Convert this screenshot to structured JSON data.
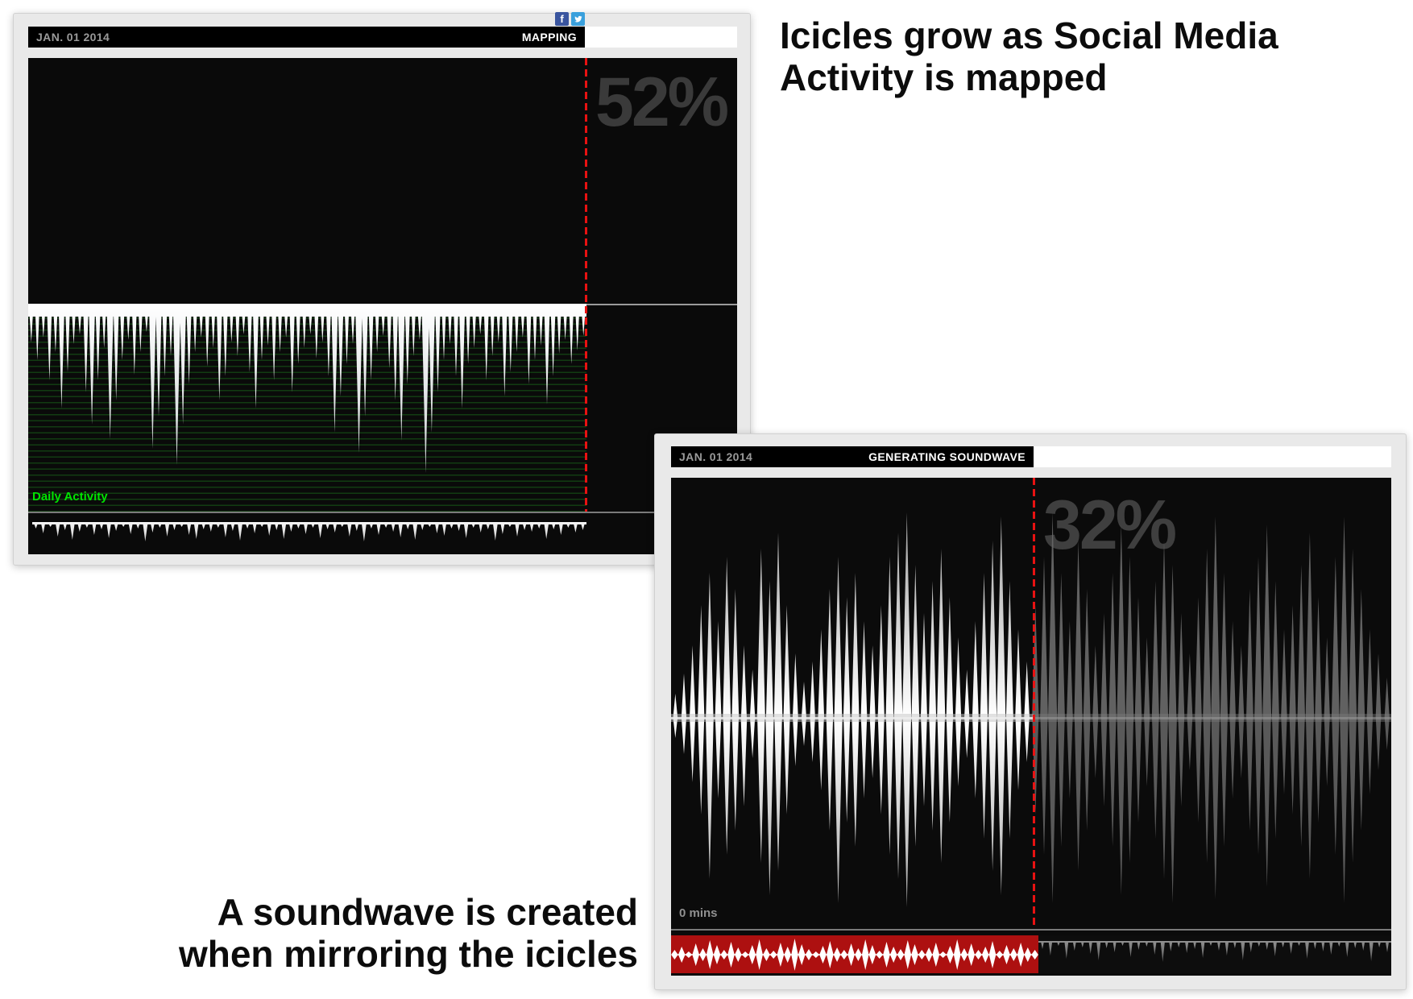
{
  "annotations": {
    "top_right": {
      "line1": "Icicles grow as Social Media",
      "line2": "Activity is mapped"
    },
    "bottom_left": {
      "line1": "A soundwave is created",
      "line2": "when mirroring the icicles"
    }
  },
  "social": {
    "facebook_glyph": "f",
    "facebook_color": "#3a559f",
    "twitter_color": "#3aa0dc"
  },
  "mapping_window": {
    "date": "JAN. 01 2014",
    "status": "MAPPING",
    "progress": "52%",
    "legend": "Daily Activity"
  },
  "soundwave_window": {
    "date": "JAN. 01 2014",
    "status": "GENERATING SOUNDWAVE",
    "progress": "32%",
    "time_label": "0 mins"
  },
  "colors": {
    "playhead_red": "#e81212",
    "timeline_red_bar": "#ad1010",
    "scanline_green": "#123c12",
    "legend_green": "#00e400",
    "percent_gray": "#3a3a3a",
    "canvas_black": "#0a0a0a"
  },
  "chart_data": [
    {
      "type": "icicle-timeline",
      "title": "Daily Activity",
      "progress_percent": 52,
      "playhead_fraction": 0.785,
      "icicle_lengths": [
        48,
        70,
        42,
        95,
        60,
        130,
        85,
        50,
        38,
        110,
        150,
        95,
        55,
        168,
        120,
        70,
        45,
        88,
        60,
        35,
        180,
        140,
        90,
        65,
        200,
        150,
        100,
        60,
        42,
        78,
        55,
        120,
        90,
        48,
        65,
        38,
        85,
        130,
        70,
        52,
        95,
        60,
        42,
        110,
        75,
        55,
        38,
        68,
        48,
        90,
        160,
        115,
        75,
        50,
        185,
        140,
        95,
        60,
        40,
        80,
        120,
        170,
        100,
        65,
        45,
        210,
        160,
        110,
        70,
        50,
        90,
        130,
        75,
        55,
        38,
        95,
        65,
        48,
        115,
        85,
        60,
        42,
        100,
        70,
        52,
        125,
        90,
        62,
        45,
        75,
        58,
        40
      ],
      "mini_strip": [
        8,
        14,
        6,
        18,
        10,
        22,
        12,
        7,
        16,
        9,
        20,
        11,
        6,
        15,
        8,
        24,
        13,
        7,
        18,
        10,
        6,
        16,
        21,
        9,
        12,
        7,
        19,
        11,
        23,
        8,
        14,
        6,
        17,
        10,
        21,
        12,
        8,
        15,
        7,
        20,
        9,
        13,
        6,
        18,
        11,
        24,
        8,
        16,
        7,
        12,
        19,
        9,
        22,
        10,
        6,
        14,
        17,
        8,
        11,
        20,
        7,
        13,
        9,
        23,
        15,
        6,
        18,
        10,
        12,
        8,
        21,
        9,
        16,
        7,
        13,
        10
      ]
    },
    {
      "type": "mirrored-waveform",
      "title": "Generated soundwave",
      "progress_percent": 32,
      "playhead_fraction": 0.503,
      "up": [
        30,
        55,
        90,
        140,
        180,
        120,
        200,
        160,
        90,
        60,
        210,
        170,
        230,
        140,
        80,
        45,
        70,
        110,
        160,
        200,
        150,
        180,
        120,
        90,
        140,
        200,
        230,
        255,
        190,
        130,
        170,
        210,
        150,
        100,
        60,
        120,
        180,
        220,
        250,
        170,
        110,
        70,
        140,
        200,
        255,
        180,
        120,
        220,
        160,
        90,
        130,
        180,
        240,
        200,
        150,
        100,
        170,
        220,
        190,
        130,
        80,
        150,
        210,
        250,
        180,
        120,
        90,
        160,
        200,
        240,
        170,
        110,
        140,
        190,
        230,
        150,
        100,
        200,
        250,
        210,
        160,
        110,
        80,
        50
      ],
      "down": [
        25,
        45,
        80,
        120,
        200,
        100,
        170,
        140,
        110,
        50,
        180,
        220,
        190,
        120,
        60,
        35,
        55,
        90,
        140,
        230,
        130,
        160,
        100,
        75,
        120,
        170,
        200,
        235,
        160,
        110,
        140,
        180,
        130,
        85,
        50,
        100,
        150,
        190,
        220,
        150,
        90,
        55,
        120,
        170,
        230,
        160,
        100,
        190,
        140,
        75,
        110,
        160,
        220,
        180,
        130,
        85,
        150,
        200,
        230,
        110,
        65,
        130,
        180,
        225,
        160,
        100,
        75,
        140,
        170,
        210,
        150,
        95,
        120,
        160,
        200,
        130,
        85,
        170,
        230,
        180,
        140,
        95,
        65,
        40
      ],
      "mini_wave": [
        6,
        10,
        4,
        14,
        8,
        18,
        12,
        6,
        16,
        9,
        4,
        12,
        19,
        8,
        5,
        15,
        10,
        20,
        13,
        7,
        4,
        11,
        17,
        9,
        6,
        14,
        8,
        19,
        12,
        5,
        16,
        10,
        7,
        18,
        13,
        6,
        9,
        15,
        4,
        11,
        19,
        8,
        14,
        6,
        10,
        17,
        5,
        12,
        8,
        15,
        9,
        6
      ],
      "mini_icicles": [
        10,
        18,
        6,
        22,
        12,
        8,
        16,
        24,
        9,
        14,
        6,
        20,
        11,
        7,
        17,
        26,
        13,
        8,
        15,
        10,
        21,
        6,
        12,
        18,
        9,
        24,
        14,
        7,
        11,
        19,
        8,
        16,
        6,
        22,
        10,
        13,
        17,
        7,
        20,
        9,
        12,
        25,
        8,
        14
      ]
    }
  ]
}
